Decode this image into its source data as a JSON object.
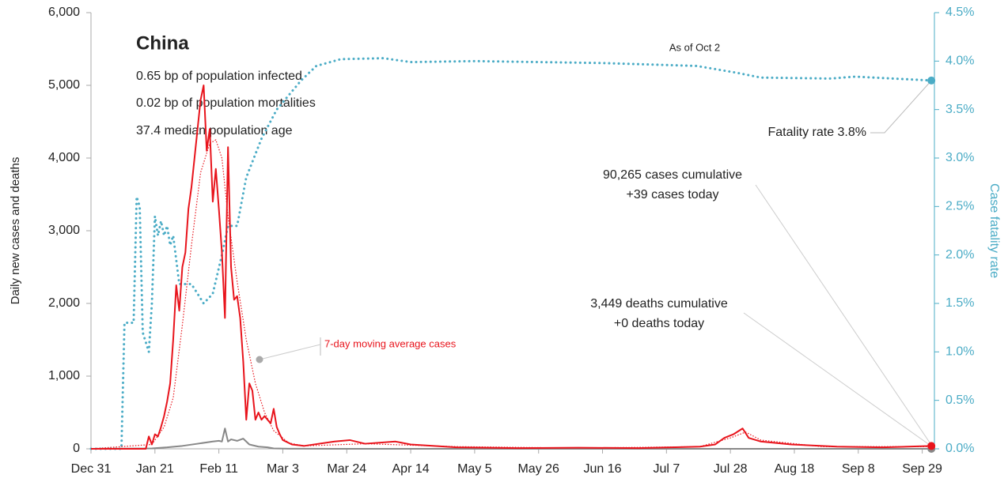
{
  "chart_data": {
    "type": "line",
    "annotations": {
      "title": "China",
      "lines": [
        "0.65 bp of population infected",
        "0.02 bp of population mortalities",
        "37.4 median population age"
      ],
      "as_of": "As of Oct 2",
      "fatality": "Fatality rate 3.8%",
      "cases": [
        "90,265 cases cumulative",
        "+39 cases today"
      ],
      "deaths": [
        "3,449 deaths cumulative",
        "+0 deaths today"
      ]
    },
    "ylabel": "Daily new cases and deaths",
    "y2label": "Case fatality rate",
    "xlim": [
      0,
      277
    ],
    "xticks": [
      {
        "value": 0,
        "label": "Dec 31"
      },
      {
        "value": 21,
        "label": "Jan 21"
      },
      {
        "value": 42,
        "label": "Feb 11"
      },
      {
        "value": 63,
        "label": "Mar 3"
      },
      {
        "value": 84,
        "label": "Mar 24"
      },
      {
        "value": 105,
        "label": "Apr 14"
      },
      {
        "value": 126,
        "label": "May 5"
      },
      {
        "value": 147,
        "label": "May 26"
      },
      {
        "value": 168,
        "label": "Jun 16"
      },
      {
        "value": 189,
        "label": "Jul 7"
      },
      {
        "value": 210,
        "label": "Jul 28"
      },
      {
        "value": 231,
        "label": "Aug 18"
      },
      {
        "value": 252,
        "label": "Sep 8"
      },
      {
        "value": 273,
        "label": "Sep 29"
      }
    ],
    "ylim": [
      0,
      6000
    ],
    "yticks": [
      0,
      {
        "value": 1000,
        "label": "1,000"
      },
      {
        "value": 2000,
        "label": "2,000"
      },
      {
        "value": 3000,
        "label": "3,000"
      },
      {
        "value": 4000,
        "label": "4,000"
      },
      {
        "value": 5000,
        "label": "5,000"
      },
      {
        "value": 6000,
        "label": "6,000"
      }
    ],
    "y2lim": [
      0,
      4.5
    ],
    "y2ticks": [
      {
        "value": 0,
        "label": "0.0%"
      },
      {
        "value": 0.5,
        "label": "0.5%"
      },
      {
        "value": 1,
        "label": "1.0%"
      },
      {
        "value": 1.5,
        "label": "1.5%"
      },
      {
        "value": 2,
        "label": "2.0%"
      },
      {
        "value": 2.5,
        "label": "2.5%"
      },
      {
        "value": 3,
        "label": "3.0%"
      },
      {
        "value": 3.5,
        "label": "3.5%"
      },
      {
        "value": 4,
        "label": "4.0%"
      },
      {
        "value": 4.5,
        "label": "4.5%"
      }
    ],
    "series": [
      {
        "color": "#4bacc6",
        "style": "dotted",
        "axis": "y2",
        "end_dot": true,
        "x": [
          0,
          10,
          11,
          14,
          15,
          16,
          17,
          18,
          19,
          20,
          21,
          22,
          23,
          24,
          25,
          26,
          27,
          29,
          33,
          37,
          40,
          43,
          45,
          48,
          51,
          56,
          61,
          69,
          74,
          82,
          96,
          105,
          126,
          168,
          199,
          212,
          220,
          243,
          251,
          276
        ],
        "values": [
          0,
          0,
          1.3,
          1.3,
          2.6,
          2.5,
          1.2,
          1.1,
          1.0,
          1.5,
          2.4,
          2.2,
          2.35,
          2.2,
          2.3,
          2.1,
          2.2,
          1.7,
          1.7,
          1.5,
          1.6,
          2.0,
          2.3,
          2.3,
          2.8,
          3.2,
          3.5,
          3.8,
          3.95,
          4.02,
          4.03,
          3.99,
          4.0,
          3.98,
          3.95,
          3.88,
          3.83,
          3.82,
          3.84,
          3.8
        ]
      },
      {
        "name": "7-day moving average cases",
        "color": "#e8141c",
        "style": "thin-dotted",
        "x": [
          0,
          20,
          24,
          27,
          30,
          33,
          36,
          39,
          41,
          43,
          45,
          48,
          51,
          54,
          57,
          60,
          65,
          70,
          90,
          120,
          160,
          200,
          210,
          215,
          220,
          240,
          276
        ],
        "values": [
          0,
          60,
          300,
          700,
          1700,
          2800,
          3800,
          4200,
          4250,
          4000,
          3200,
          2300,
          1500,
          900,
          500,
          250,
          80,
          40,
          70,
          30,
          10,
          30,
          150,
          230,
          120,
          30,
          30
        ]
      },
      {
        "color": "#888888",
        "style": "solid",
        "end_dot": true,
        "x": [
          0,
          20,
          25,
          30,
          35,
          40,
          42,
          43,
          44,
          45,
          46,
          48,
          50,
          52,
          55,
          58,
          60,
          65,
          80,
          276
        ],
        "values": [
          0,
          5,
          20,
          40,
          70,
          100,
          110,
          100,
          280,
          100,
          130,
          110,
          140,
          60,
          30,
          20,
          5,
          2,
          0,
          0
        ]
      },
      {
        "color": "#e8141c",
        "style": "solid",
        "end_dot": true,
        "x": [
          0,
          18,
          19,
          20,
          21,
          22,
          23,
          24,
          25,
          26,
          27,
          28,
          29,
          30,
          31,
          32,
          33,
          34,
          35,
          36,
          37,
          38,
          39,
          40,
          41,
          42,
          43,
          44,
          45,
          46,
          47,
          48,
          49,
          50,
          51,
          52,
          53,
          54,
          55,
          56,
          57,
          58,
          59,
          60,
          61,
          62,
          63,
          66,
          70,
          80,
          85,
          90,
          100,
          105,
          120,
          140,
          160,
          180,
          200,
          205,
          208,
          211,
          214,
          216,
          220,
          230,
          245,
          260,
          276
        ],
        "values": [
          0,
          0,
          170,
          60,
          200,
          170,
          300,
          450,
          650,
          900,
          1500,
          2250,
          1900,
          2500,
          2700,
          3300,
          3600,
          4000,
          4400,
          4800,
          5000,
          4100,
          4400,
          3400,
          3850,
          3300,
          2700,
          1800,
          4150,
          2500,
          2050,
          2100,
          1800,
          1200,
          400,
          900,
          800,
          400,
          500,
          400,
          450,
          400,
          350,
          550,
          300,
          200,
          120,
          60,
          40,
          100,
          120,
          70,
          100,
          60,
          20,
          10,
          15,
          10,
          30,
          60,
          150,
          200,
          280,
          150,
          100,
          60,
          30,
          20,
          39
        ]
      }
    ]
  }
}
